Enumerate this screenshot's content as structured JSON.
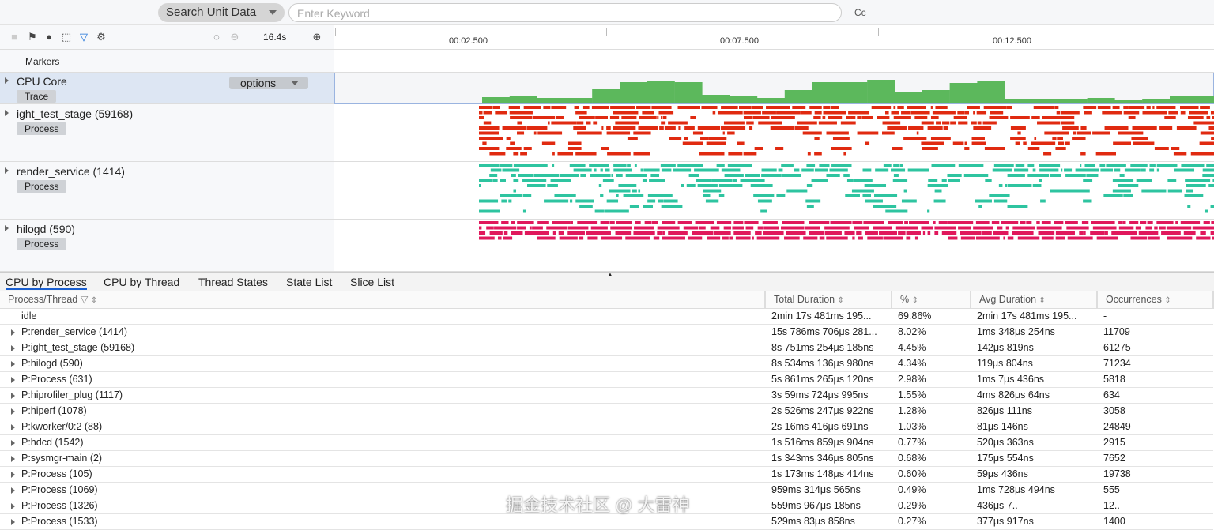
{
  "search": {
    "mode": "Search Unit Data",
    "placeholder": "Enter Keyword",
    "case_label": "Cc"
  },
  "toolbar": {
    "zoom_value": "16.4s"
  },
  "ruler": {
    "ticks": [
      "00:02.500",
      "00:07.500",
      "00:12.500"
    ]
  },
  "markers_label": "Markers",
  "tracks": [
    {
      "name": "CPU Core",
      "badge": "Trace",
      "options": "options",
      "color": "#5cb85c"
    },
    {
      "name": "ight_test_stage (59168)",
      "badge": "Process",
      "color": "#e02a10"
    },
    {
      "name": "render_service (1414)",
      "badge": "Process",
      "color": "#2ec4a0"
    },
    {
      "name": "hilogd (590)",
      "badge": "Process",
      "color": "#e0185c"
    }
  ],
  "tabs": [
    "CPU by Process",
    "CPU by Thread",
    "Thread States",
    "State List",
    "Slice List"
  ],
  "table": {
    "headers": [
      "Process/Thread",
      "Total Duration",
      "%",
      "Avg Duration",
      "Occurrences"
    ],
    "rows": [
      [
        "idle",
        "2min 17s 481ms 195...",
        "69.86%",
        "2min 17s 481ms 195...",
        "-"
      ],
      [
        "P:render_service (1414)",
        "15s 786ms 706μs 281...",
        "8.02%",
        "1ms 348μs 254ns",
        "11709"
      ],
      [
        "P:ight_test_stage (59168)",
        "8s 751ms 254μs 185ns",
        "4.45%",
        "142μs 819ns",
        "61275"
      ],
      [
        "P:hilogd (590)",
        "8s 534ms 136μs 980ns",
        "4.34%",
        "119μs 804ns",
        "71234"
      ],
      [
        "P:Process (631)",
        "5s 861ms 265μs 120ns",
        "2.98%",
        "1ms 7μs 436ns",
        "5818"
      ],
      [
        "P:hiprofiler_plug (1117)",
        "3s 59ms 724μs 995ns",
        "1.55%",
        "4ms 826μs 64ns",
        "634"
      ],
      [
        "P:hiperf (1078)",
        "2s 526ms 247μs 922ns",
        "1.28%",
        "826μs 111ns",
        "3058"
      ],
      [
        "P:kworker/0:2 (88)",
        "2s 16ms 416μs 691ns",
        "1.03%",
        "81μs 146ns",
        "24849"
      ],
      [
        "P:hdcd (1542)",
        "1s 516ms 859μs 904ns",
        "0.77%",
        "520μs 363ns",
        "2915"
      ],
      [
        "P:sysmgr-main (2)",
        "1s 343ms 346μs 805ns",
        "0.68%",
        "175μs 554ns",
        "7652"
      ],
      [
        "P:Process (105)",
        "1s 173ms 148μs 414ns",
        "0.60%",
        "59μs 436ns",
        "19738"
      ],
      [
        "P:Process (1069)",
        "959ms 314μs 565ns",
        "0.49%",
        "1ms 728μs 494ns",
        "555"
      ],
      [
        "P:Process (1326)",
        "559ms 967μs 185ns",
        "0.29%",
        "436μs 7..",
        "12.."
      ],
      [
        "P:Process (1533)",
        "529ms 83μs 858ns",
        "0.27%",
        "377μs 917ns",
        "1400"
      ]
    ]
  },
  "watermark": "掘金技术社区 @ 大雷神"
}
